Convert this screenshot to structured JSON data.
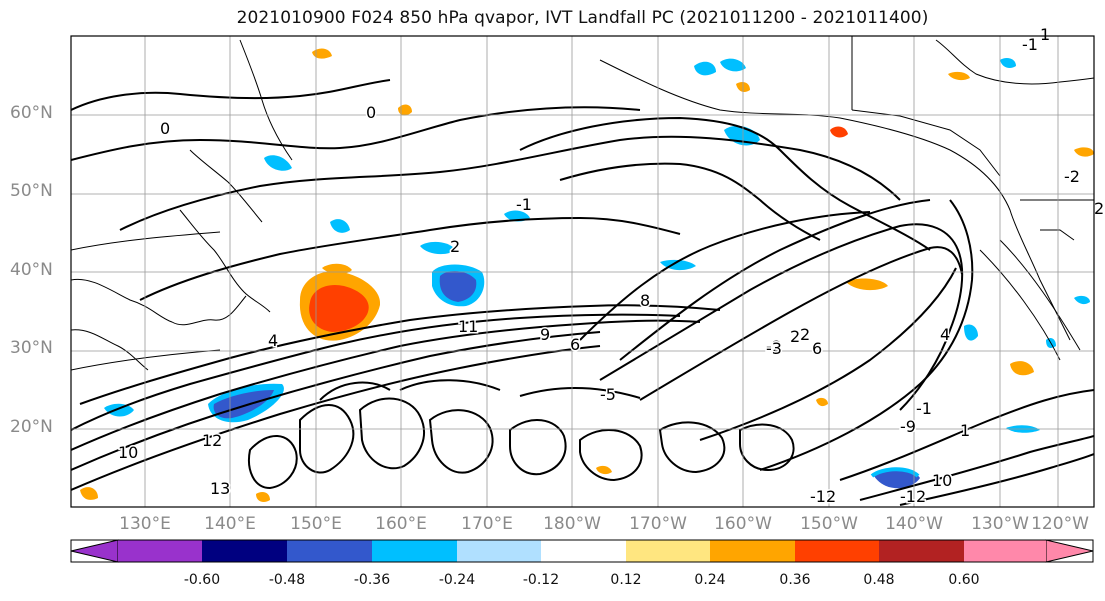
{
  "title": "2021010900 F024 850 hPa qvapor, IVT Landfall PC (2021011200 - 2021011400)",
  "lat_labels": [
    "60°N",
    "50°N",
    "40°N",
    "30°N",
    "20°N"
  ],
  "lon_labels": [
    "130°E",
    "140°E",
    "150°E",
    "160°E",
    "170°E",
    "180°W",
    "170°W",
    "160°W",
    "150°W",
    "140°W",
    "130°W",
    "120°W"
  ],
  "colorbar": {
    "tick_labels": [
      "-0.60",
      "-0.48",
      "-0.36",
      "-0.24",
      "-0.12",
      "0.12",
      "0.24",
      "0.36",
      "0.48",
      "0.60"
    ],
    "colors": [
      "#9932cc",
      "#000080",
      "#3358cc",
      "#00bfff",
      "#b0e0ff",
      "#ffffff",
      "#ffe680",
      "#ffa500",
      "#ff4000",
      "#b22222",
      "#ff88aa"
    ]
  },
  "contour_labels": [
    "0",
    "0",
    "-1",
    "2",
    "2",
    "4",
    "8",
    "11",
    "12",
    "13",
    "10",
    "9",
    "-9",
    "-2",
    "2",
    "6",
    "-2",
    "-1",
    "1",
    "-12",
    "-12",
    "10",
    "2",
    "6",
    "-5",
    "-1",
    "1",
    "-3",
    "4"
  ]
}
